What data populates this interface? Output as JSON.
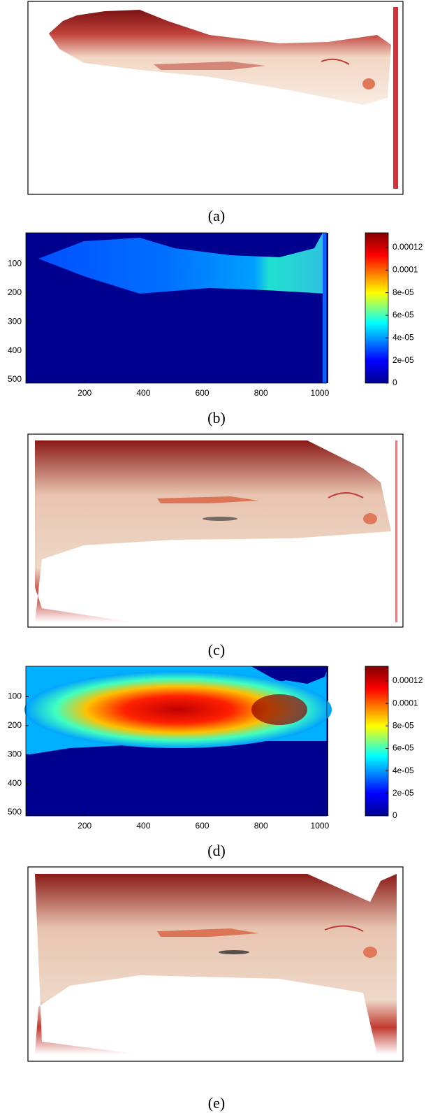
{
  "panels": [
    {
      "label": "(a)"
    },
    {
      "label": "(b)",
      "xlim": [
        0,
        1024
      ],
      "xticks": [
        200,
        400,
        600,
        800,
        1000
      ],
      "ylim": [
        0,
        512
      ],
      "yticks": [
        100,
        200,
        300,
        400,
        500
      ],
      "clim": [
        0,
        0.000133
      ],
      "cticks": [
        0,
        {
          "value": 2e-05,
          "label": "2e-05"
        },
        {
          "value": 4e-05,
          "label": "4e-05"
        },
        {
          "value": 6e-05,
          "label": "6e-05"
        },
        {
          "value": 8e-05,
          "label": "8e-05"
        },
        0.0001,
        0.00012
      ]
    },
    {
      "label": "(c)"
    },
    {
      "label": "(d)",
      "xlim": [
        0,
        1024
      ],
      "xticks": [
        200,
        400,
        600,
        800,
        1000
      ],
      "ylim": [
        0,
        512
      ],
      "yticks": [
        100,
        200,
        300,
        400,
        500
      ],
      "clim": [
        0,
        0.000133
      ],
      "cticks": [
        0,
        {
          "value": 2e-05,
          "label": "2e-05"
        },
        {
          "value": 4e-05,
          "label": "4e-05"
        },
        {
          "value": 6e-05,
          "label": "6e-05"
        },
        {
          "value": 8e-05,
          "label": "8e-05"
        },
        0.0001,
        0.00012
      ]
    },
    {
      "label": "(e)"
    }
  ]
}
